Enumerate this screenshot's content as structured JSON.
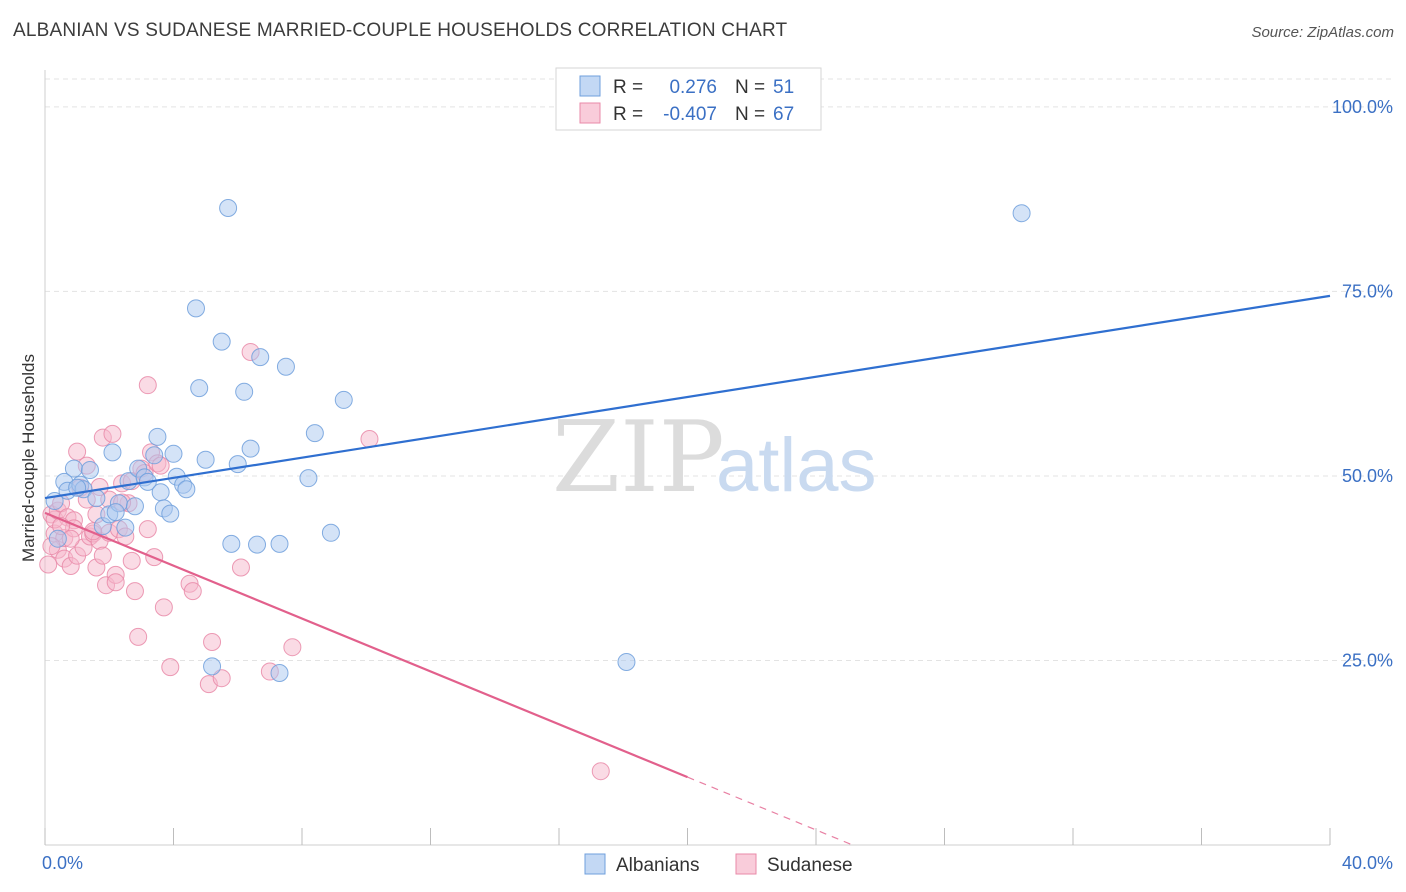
{
  "header": {
    "title": "ALBANIAN VS SUDANESE MARRIED-COUPLE HOUSEHOLDS CORRELATION CHART",
    "source": "Source: ZipAtlas.com"
  },
  "watermark": {
    "zip": "ZIP",
    "atlas": "atlas"
  },
  "colors": {
    "albanians_fill": "#a9c7ef",
    "albanians_stroke": "#6f9fdc",
    "albanians_line": "#2f6fd0",
    "sudanese_fill": "#f6b7cb",
    "sudanese_stroke": "#e98aa8",
    "sudanese_line": "#e2608c",
    "grid": "#e3e3e3",
    "axis_text": "#3b70c4"
  },
  "chart_data": {
    "type": "scatter",
    "title": "ALBANIAN VS SUDANESE MARRIED-COUPLE HOUSEHOLDS CORRELATION CHART",
    "xlabel": "",
    "ylabel": "Married-couple Households",
    "xlim": [
      0,
      40
    ],
    "ylim": [
      0,
      105
    ],
    "x_tick_labels": {
      "min": "0.0%",
      "max": "40.0%"
    },
    "y_ticks": [
      {
        "value": 25,
        "label": "25.0%"
      },
      {
        "value": 50,
        "label": "50.0%"
      },
      {
        "value": 75,
        "label": "75.0%"
      },
      {
        "value": 100,
        "label": "100.0%"
      }
    ],
    "legend": [
      {
        "name": "Albanians",
        "r_label": "R =",
        "r_value": "0.276",
        "n_label": "N =",
        "n_value": "51"
      },
      {
        "name": "Sudanese",
        "r_label": "R =",
        "r_value": "-0.407",
        "n_label": "N =",
        "n_value": "67"
      }
    ],
    "series": [
      {
        "name": "Albanians",
        "trend": {
          "x1": 0,
          "y1": 47.0,
          "x2": 40,
          "y2": 74.4,
          "solid_until": 40
        },
        "points": [
          [
            0.4,
            41.5
          ],
          [
            0.6,
            49.2
          ],
          [
            0.7,
            48.0
          ],
          [
            0.9,
            51.0
          ],
          [
            1.1,
            48.8
          ],
          [
            1.2,
            48.2
          ],
          [
            1.4,
            50.8
          ],
          [
            1.6,
            47.0
          ],
          [
            1.8,
            43.2
          ],
          [
            2.0,
            44.8
          ],
          [
            2.1,
            53.2
          ],
          [
            2.3,
            46.3
          ],
          [
            2.5,
            43.0
          ],
          [
            2.6,
            49.3
          ],
          [
            2.8,
            45.9
          ],
          [
            2.9,
            51.0
          ],
          [
            3.1,
            49.8
          ],
          [
            3.2,
            49.2
          ],
          [
            3.4,
            52.8
          ],
          [
            3.5,
            55.3
          ],
          [
            3.6,
            47.8
          ],
          [
            3.7,
            45.6
          ],
          [
            3.9,
            44.9
          ],
          [
            4.0,
            53.0
          ],
          [
            4.1,
            49.9
          ],
          [
            4.3,
            48.8
          ],
          [
            4.4,
            48.2
          ],
          [
            4.7,
            72.7
          ],
          [
            4.8,
            61.9
          ],
          [
            5.0,
            52.2
          ],
          [
            5.2,
            24.2
          ],
          [
            5.5,
            68.2
          ],
          [
            5.7,
            86.3
          ],
          [
            5.8,
            40.8
          ],
          [
            6.0,
            51.6
          ],
          [
            6.2,
            61.4
          ],
          [
            6.4,
            53.7
          ],
          [
            6.6,
            40.7
          ],
          [
            6.7,
            66.1
          ],
          [
            7.3,
            40.8
          ],
          [
            7.5,
            64.8
          ],
          [
            8.2,
            49.7
          ],
          [
            8.4,
            55.8
          ],
          [
            8.9,
            42.3
          ],
          [
            9.3,
            60.3
          ],
          [
            18.1,
            24.8
          ],
          [
            30.4,
            85.6
          ],
          [
            0.3,
            46.6
          ],
          [
            1.0,
            48.4
          ],
          [
            2.2,
            45.1
          ],
          [
            7.3,
            23.3
          ]
        ]
      },
      {
        "name": "Sudanese",
        "trend": {
          "x1": 0,
          "y1": 45.0,
          "x2": 40,
          "y2": -26.6,
          "solid_until": 20
        },
        "points": [
          [
            0.1,
            38.0
          ],
          [
            0.2,
            44.8
          ],
          [
            0.3,
            42.2
          ],
          [
            0.3,
            44.1
          ],
          [
            0.4,
            40.0
          ],
          [
            0.4,
            45.3
          ],
          [
            0.5,
            46.3
          ],
          [
            0.6,
            41.6
          ],
          [
            0.6,
            38.8
          ],
          [
            0.7,
            44.4
          ],
          [
            0.8,
            37.8
          ],
          [
            0.9,
            44.0
          ],
          [
            0.9,
            42.9
          ],
          [
            1.0,
            53.3
          ],
          [
            1.0,
            39.2
          ],
          [
            1.1,
            48.4
          ],
          [
            1.2,
            40.3
          ],
          [
            1.3,
            51.4
          ],
          [
            1.3,
            46.8
          ],
          [
            1.4,
            41.8
          ],
          [
            1.5,
            42.2
          ],
          [
            1.6,
            37.6
          ],
          [
            1.6,
            44.8
          ],
          [
            1.7,
            41.2
          ],
          [
            1.8,
            39.2
          ],
          [
            1.8,
            55.2
          ],
          [
            1.9,
            35.2
          ],
          [
            2.0,
            46.8
          ],
          [
            2.0,
            42.3
          ],
          [
            2.1,
            55.7
          ],
          [
            2.2,
            36.6
          ],
          [
            2.2,
            35.6
          ],
          [
            2.3,
            42.8
          ],
          [
            2.4,
            49.0
          ],
          [
            2.5,
            41.8
          ],
          [
            2.6,
            46.3
          ],
          [
            2.7,
            38.5
          ],
          [
            2.7,
            49.3
          ],
          [
            2.8,
            34.4
          ],
          [
            2.9,
            28.2
          ],
          [
            3.0,
            51.0
          ],
          [
            3.1,
            50.4
          ],
          [
            3.2,
            62.3
          ],
          [
            3.2,
            42.8
          ],
          [
            3.3,
            53.2
          ],
          [
            3.4,
            39.0
          ],
          [
            3.5,
            51.7
          ],
          [
            3.6,
            51.4
          ],
          [
            3.7,
            32.2
          ],
          [
            3.9,
            24.1
          ],
          [
            4.5,
            35.4
          ],
          [
            4.6,
            34.4
          ],
          [
            5.1,
            21.8
          ],
          [
            5.2,
            27.5
          ],
          [
            5.5,
            22.6
          ],
          [
            6.1,
            37.6
          ],
          [
            6.4,
            66.8
          ],
          [
            7.0,
            23.5
          ],
          [
            7.7,
            26.8
          ],
          [
            10.1,
            55.0
          ],
          [
            17.3,
            10.0
          ],
          [
            0.2,
            40.5
          ],
          [
            0.5,
            43.2
          ],
          [
            1.5,
            42.5
          ],
          [
            2.4,
            46.4
          ],
          [
            0.8,
            41.5
          ],
          [
            1.7,
            48.5
          ]
        ]
      }
    ]
  }
}
